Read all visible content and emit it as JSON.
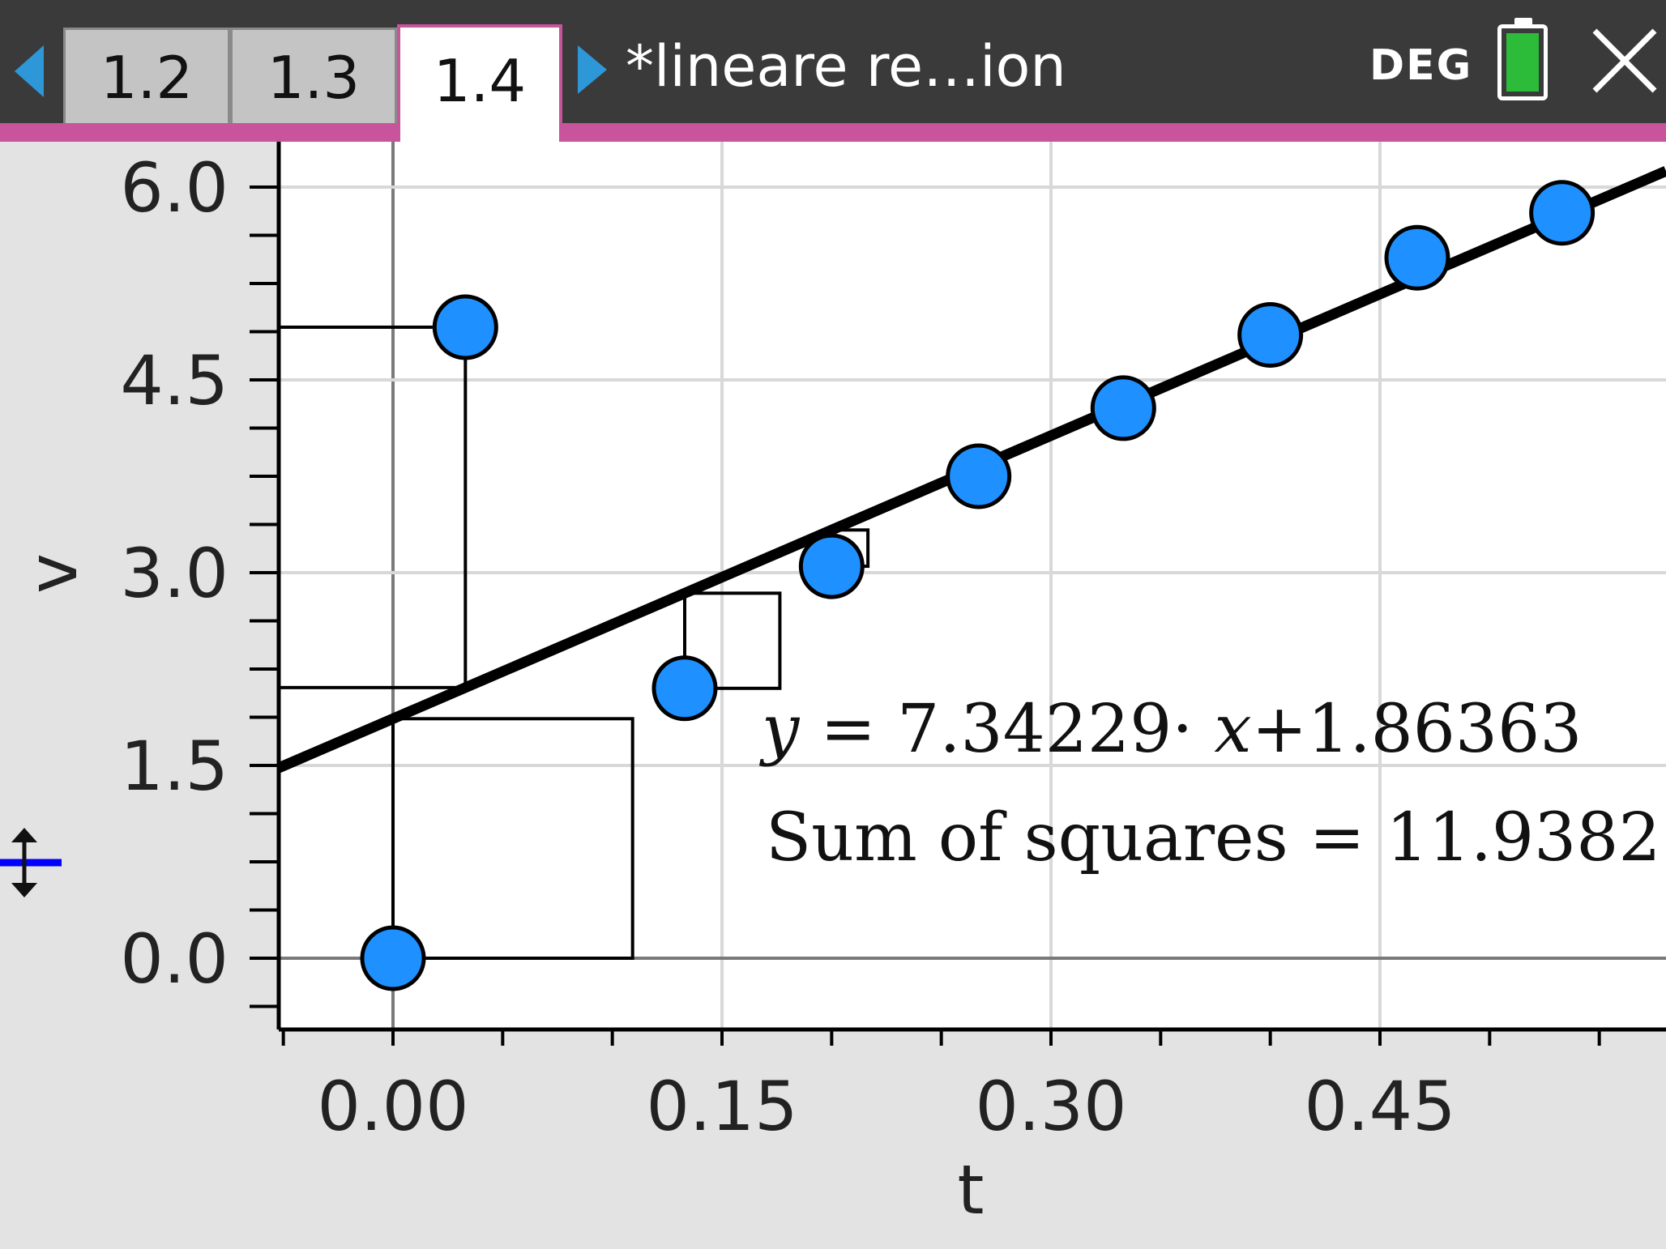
{
  "tabs": [
    {
      "label": "1.2",
      "active": false
    },
    {
      "label": "1.3",
      "active": false
    },
    {
      "label": "1.4",
      "active": true
    }
  ],
  "document_title": "*lineare re…ion",
  "angle_mode": "DEG",
  "colors": {
    "accent": "#c8559b",
    "nav_arrow": "#2d97d7",
    "point_fill": "#1e90ff",
    "battery": "#2cbc3a",
    "topbar": "#3a3a3a"
  },
  "icons": {
    "prev": "triangle-left-icon",
    "next": "triangle-right-icon",
    "battery": "battery-icon",
    "close": "close-x-icon",
    "axis_resize": "vertical-resize-icon"
  },
  "regression": {
    "equation_y": "y",
    "equation_eq": " = 7.34229· ",
    "equation_x": "x",
    "equation_tail": "+1.86363",
    "sum_of_squares": "Sum of squares = 11.9382"
  },
  "chart_data": {
    "type": "scatter",
    "xlabel": "t",
    "ylabel": "v",
    "xlim": [
      -0.05,
      0.59
    ],
    "ylim": [
      -0.5,
      6.35
    ],
    "xticks": [
      "0.00",
      "0.15",
      "0.30",
      "0.45"
    ],
    "yticks": [
      "0.0",
      "1.5",
      "3.0",
      "4.5",
      "6.0"
    ],
    "grid": true,
    "points": [
      {
        "x": 0.0,
        "y": 0.0
      },
      {
        "x": 0.033,
        "y": 4.91
      },
      {
        "x": 0.133,
        "y": 2.1
      },
      {
        "x": 0.2,
        "y": 3.05
      },
      {
        "x": 0.267,
        "y": 3.75
      },
      {
        "x": 0.333,
        "y": 4.28
      },
      {
        "x": 0.4,
        "y": 4.85
      },
      {
        "x": 0.467,
        "y": 5.45
      },
      {
        "x": 0.533,
        "y": 5.8
      }
    ],
    "fit_line": {
      "slope": 7.34229,
      "intercept": 1.86363
    },
    "residual_squares_shown": true
  }
}
